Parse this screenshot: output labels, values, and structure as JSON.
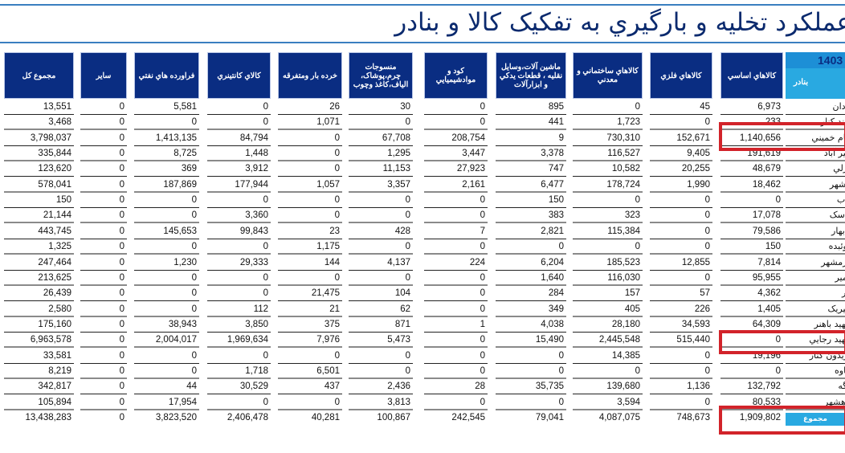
{
  "title": "عملکرد تخليه و بارگيري به تفکيک کالا و بنادر",
  "year": "1403",
  "port_header": "بنادر",
  "columns": [
    "کالاهاي اساسي",
    "کالاهاي فلزي",
    "کالاهاي ساختماني و معدني",
    "ماشين آلات،وسايل نقليه ، قطعات يدکي و ابزارآلات",
    "کود و موادشيميايي",
    "منسوجات چرم،پوشاک، الياف،کاغذ وچوب",
    "خرده بار ومتفرقه",
    "کالاي کانتينري",
    "فراورده هاي نفتي",
    "ساير",
    "مجموع کل"
  ],
  "rows": [
    {
      "port": "آبادان",
      "values": [
        "6,973",
        "45",
        "0",
        "895",
        "0",
        "30",
        "26",
        "0",
        "5,581",
        "0",
        "13,551"
      ]
    },
    {
      "port": "روند کنار",
      "values": [
        "233",
        "0",
        "1,723",
        "441",
        "0",
        "0",
        "1,071",
        "0",
        "0",
        "0",
        "3,468"
      ]
    },
    {
      "port": "امام خميني",
      "values": [
        "1,140,656",
        "152,671",
        "730,310",
        "9",
        "208,754",
        "67,708",
        "0",
        "84,794",
        "1,413,135",
        "0",
        "3,798,037"
      ]
    },
    {
      "port": "امير آباد",
      "values": [
        "191,619",
        "9,405",
        "116,527",
        "3,378",
        "3,447",
        "1,295",
        "0",
        "1,448",
        "8,725",
        "0",
        "335,844"
      ]
    },
    {
      "port": "انزلي",
      "values": [
        "48,679",
        "20,255",
        "10,582",
        "747",
        "27,923",
        "11,153",
        "0",
        "3,912",
        "369",
        "0",
        "123,620"
      ]
    },
    {
      "port": "بوشهر",
      "values": [
        "18,462",
        "1,990",
        "178,724",
        "6,477",
        "2,161",
        "3,357",
        "1,057",
        "177,944",
        "187,869",
        "0",
        "578,041"
      ]
    },
    {
      "port": "تياب",
      "values": [
        "0",
        "0",
        "0",
        "150",
        "0",
        "0",
        "0",
        "0",
        "0",
        "0",
        "150"
      ]
    },
    {
      "port": "جاسک",
      "values": [
        "17,078",
        "0",
        "323",
        "383",
        "0",
        "0",
        "0",
        "3,360",
        "0",
        "0",
        "21,144"
      ]
    },
    {
      "port": "چابهار",
      "values": [
        "79,586",
        "0",
        "115,384",
        "2,821",
        "7",
        "428",
        "23",
        "99,843",
        "145,653",
        "0",
        "443,745"
      ]
    },
    {
      "port": "چوئبده",
      "values": [
        "150",
        "0",
        "0",
        "0",
        "0",
        "0",
        "1,175",
        "0",
        "0",
        "0",
        "1,325"
      ]
    },
    {
      "port": "خرمشهر",
      "values": [
        "7,814",
        "12,855",
        "185,523",
        "6,204",
        "224",
        "4,137",
        "144",
        "29,333",
        "1,230",
        "0",
        "247,464"
      ]
    },
    {
      "port": "خمير",
      "values": [
        "95,955",
        "0",
        "116,030",
        "1,640",
        "0",
        "0",
        "0",
        "0",
        "0",
        "0",
        "213,625"
      ]
    },
    {
      "port": "دير",
      "values": [
        "4,362",
        "57",
        "157",
        "284",
        "0",
        "104",
        "21,475",
        "0",
        "0",
        "0",
        "26,439"
      ]
    },
    {
      "port": "سيريک",
      "values": [
        "1,405",
        "226",
        "405",
        "349",
        "0",
        "62",
        "21",
        "112",
        "0",
        "0",
        "2,580"
      ]
    },
    {
      "port": "شهيد باهنر",
      "values": [
        "64,309",
        "34,593",
        "28,180",
        "4,038",
        "1",
        "871",
        "375",
        "3,850",
        "38,943",
        "0",
        "175,160"
      ]
    },
    {
      "port": "شهيد رجايي",
      "values": [
        "0",
        "515,440",
        "2,445,548",
        "15,490",
        "0",
        "5,473",
        "7,976",
        "1,969,634",
        "2,004,017",
        "0",
        "6,963,578"
      ]
    },
    {
      "port": "فريدون کنار",
      "values": [
        "19,196",
        "0",
        "14,385",
        "0",
        "0",
        "0",
        "0",
        "0",
        "0",
        "0",
        "33,581"
      ]
    },
    {
      "port": "گناوه",
      "values": [
        "0",
        "0",
        "0",
        "0",
        "0",
        "0",
        "6,501",
        "1,718",
        "0",
        "0",
        "8,219"
      ]
    },
    {
      "port": "لنگه",
      "values": [
        "132,792",
        "1,136",
        "139,680",
        "35,735",
        "28",
        "2,436",
        "437",
        "30,529",
        "44",
        "0",
        "342,817"
      ]
    },
    {
      "port": "ماهشهر",
      "values": [
        "80,533",
        "0",
        "3,594",
        "0",
        "0",
        "3,813",
        "0",
        "0",
        "17,954",
        "0",
        "105,894"
      ]
    }
  ],
  "total": {
    "label": "مجموع",
    "values": [
      "1,909,802",
      "748,673",
      "4,087,075",
      "79,041",
      "242,545",
      "100,867",
      "40,281",
      "2,406,478",
      "3,823,520",
      "0",
      "13,438,283"
    ]
  },
  "highlight_color": "#d2232a",
  "header_color": "#0a2d82",
  "accent_color": "#29a9e1"
}
